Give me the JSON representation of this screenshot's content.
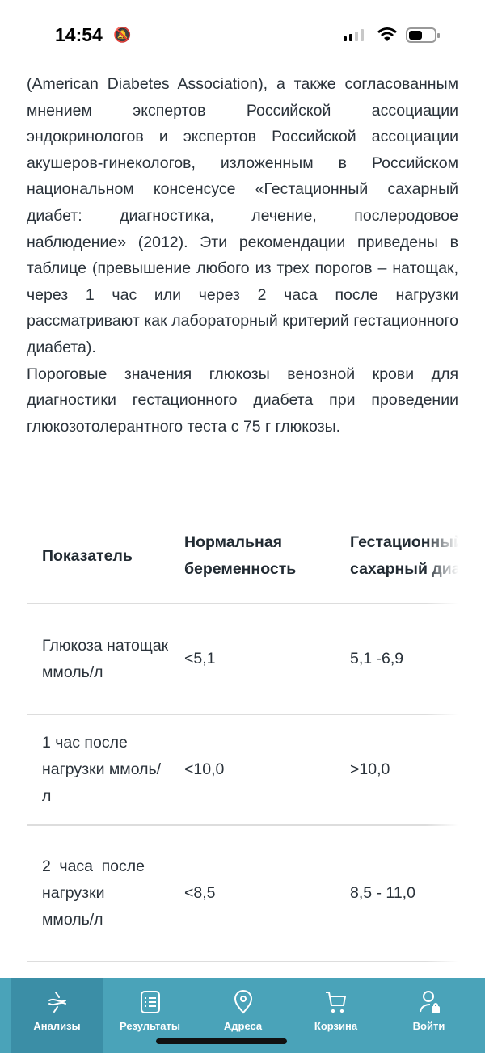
{
  "status": {
    "time": "14:54",
    "bell_icon": "bell-slash-icon"
  },
  "paragraphs": [
    "(American Diabetes Association), а также согласованным мнением экспертов Российской ассоциации эндокринологов и экспертов Российской ассоциации акушеров-гинекологов, изложенным в Российском национальном консенсусе «Гестационный сахарный диабет: диагностика, лечение, послеродовое наблюдение» (2012). Эти рекомендации приведены в таблице (превышение любого из трех порогов – натощак, через 1 час или через 2 часа после нагрузки рассматривают как лабораторный критерий гестационного диабета).",
    "Пороговые значения глюкозы венозной крови для диагностики гестационного диабета при проведении глюкозотолерантного теста с 75 г глюкозы."
  ],
  "table": {
    "headers": [
      "Показатель",
      "Нормальная беременность",
      "Гестационный сахарный диабет"
    ],
    "rows": [
      [
        "Глюкоза натощак ммоль/л",
        "<5,1",
        "5,1 -6,9"
      ],
      [
        "1 час после нагрузки ммоль/л",
        "<10,0",
        ">10,0"
      ],
      [
        "2 часа после нагрузки ммоль/л",
        "<8,5",
        "8,5 - 11,0"
      ]
    ]
  },
  "nav": {
    "accent": "#4aa3b9",
    "active_color": "#3b8ea6",
    "items": [
      {
        "label": "Анализы",
        "icon": "dna-icon",
        "active": true
      },
      {
        "label": "Результаты",
        "icon": "list-icon"
      },
      {
        "label": "Адреса",
        "icon": "location-pin-icon"
      },
      {
        "label": "Корзина",
        "icon": "cart-icon"
      },
      {
        "label": "Войти",
        "icon": "user-lock-icon"
      }
    ]
  }
}
